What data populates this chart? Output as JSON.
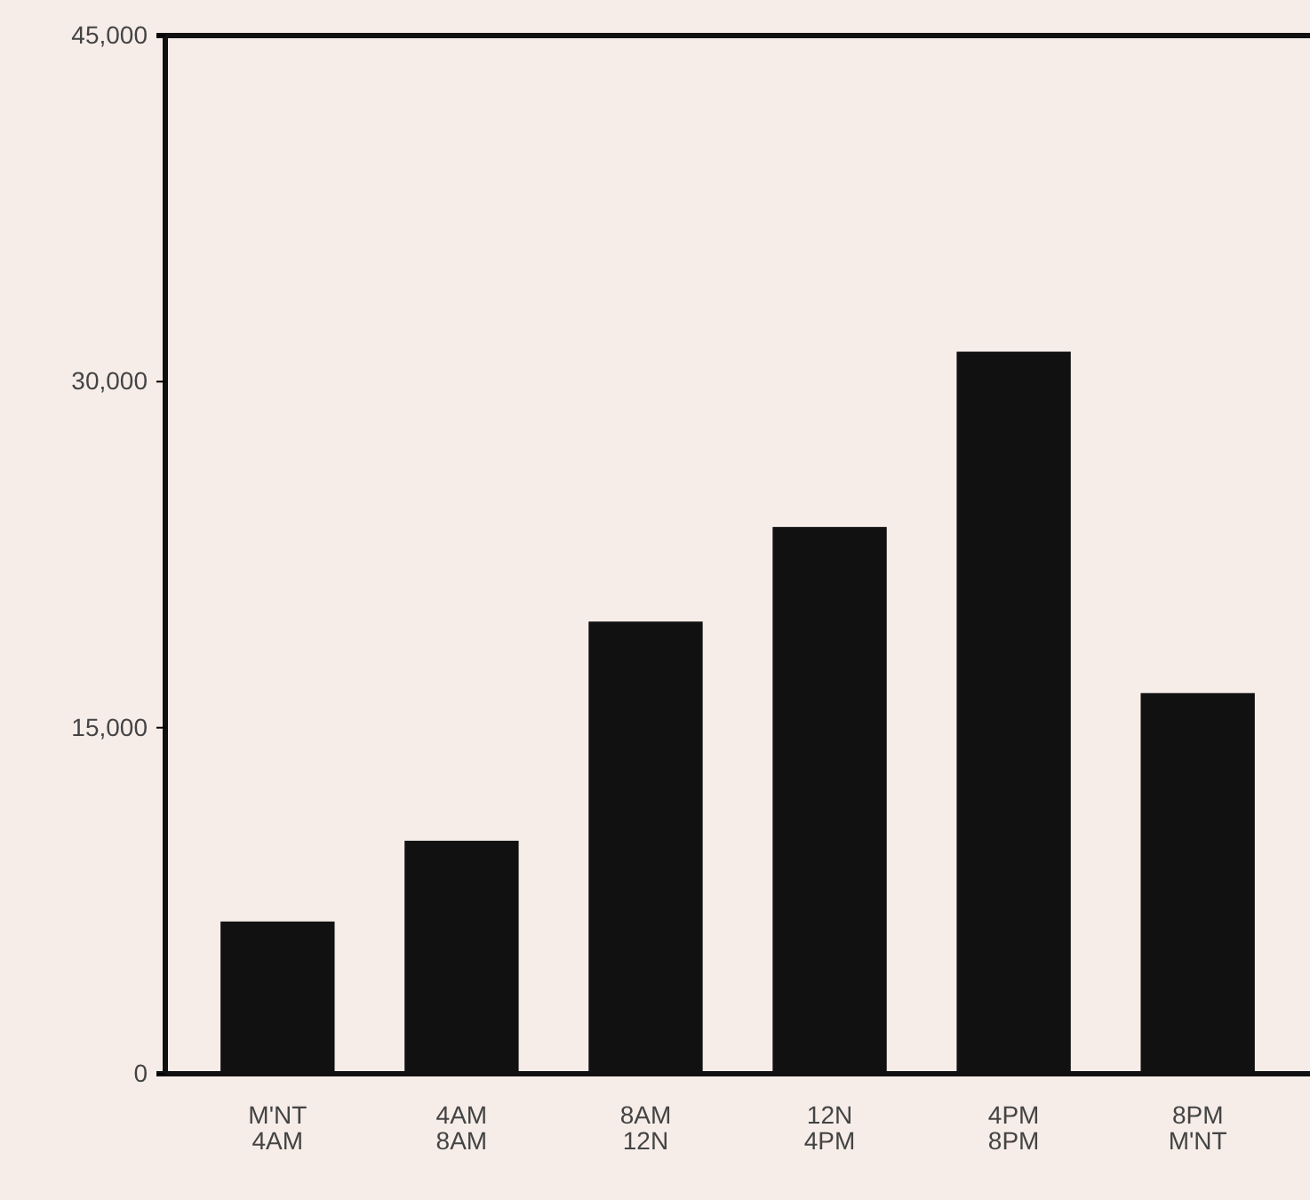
{
  "chart_data": {
    "type": "bar",
    "categories": [
      "M'NT\n4AM",
      "4AM\n8AM",
      "8AM\n12N",
      "12N\n4PM",
      "4PM\n8PM",
      "8PM\nM'NT"
    ],
    "values": [
      6600,
      10100,
      19600,
      23700,
      31300,
      16500
    ],
    "color": "#111111",
    "ylim": [
      0,
      45000
    ],
    "yticks": [
      {
        "value": 0,
        "label": "0"
      },
      {
        "value": 15000,
        "label": "15,000"
      },
      {
        "value": 30000,
        "label": "30,000"
      },
      {
        "value": 45000,
        "label": "45,000"
      }
    ],
    "grid": false
  }
}
